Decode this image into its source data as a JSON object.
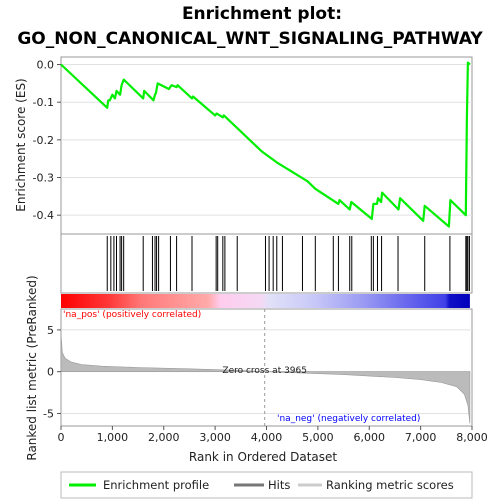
{
  "chart_data": {
    "type": "line",
    "title_line1": "Enrichment plot:",
    "title_line2": "GO_NON_CANONICAL_WNT_SIGNALING_PATHWAY",
    "colors": {
      "enrichment": "#00ee00",
      "hits": "#000000",
      "metric": "#bbbbbb",
      "pos_label": "#ff0000",
      "neg_label": "#0000ff",
      "zero_cross": "#999999"
    },
    "enrichment_panel": {
      "ylabel": "Enrichment score (ES)",
      "ylim": [
        -0.45,
        0.02
      ],
      "yticks": [
        0.0,
        -0.1,
        -0.2,
        -0.3,
        -0.4
      ],
      "ytick_labels": [
        "0.0",
        "-0.1",
        "-0.2",
        "-0.3",
        "-0.4"
      ],
      "grid": true,
      "profile": [
        [
          0,
          0.0
        ],
        [
          900,
          -0.115
        ],
        [
          920,
          -0.095
        ],
        [
          950,
          -0.095
        ],
        [
          1000,
          -0.08
        ],
        [
          1050,
          -0.09
        ],
        [
          1080,
          -0.07
        ],
        [
          1150,
          -0.08
        ],
        [
          1180,
          -0.055
        ],
        [
          1220,
          -0.04
        ],
        [
          1600,
          -0.09
        ],
        [
          1620,
          -0.07
        ],
        [
          1800,
          -0.095
        ],
        [
          1830,
          -0.08
        ],
        [
          1850,
          -0.075
        ],
        [
          1880,
          -0.05
        ],
        [
          2100,
          -0.065
        ],
        [
          2150,
          -0.055
        ],
        [
          2250,
          -0.06
        ],
        [
          2270,
          -0.055
        ],
        [
          2550,
          -0.09
        ],
        [
          2570,
          -0.085
        ],
        [
          3000,
          -0.135
        ],
        [
          3030,
          -0.13
        ],
        [
          3150,
          -0.14
        ],
        [
          3170,
          -0.135
        ],
        [
          3900,
          -0.23
        ],
        [
          4200,
          -0.26
        ],
        [
          4800,
          -0.31
        ],
        [
          4950,
          -0.33
        ],
        [
          5400,
          -0.37
        ],
        [
          5420,
          -0.36
        ],
        [
          5620,
          -0.385
        ],
        [
          5650,
          -0.365
        ],
        [
          6050,
          -0.41
        ],
        [
          6080,
          -0.37
        ],
        [
          6150,
          -0.37
        ],
        [
          6170,
          -0.355
        ],
        [
          6230,
          -0.365
        ],
        [
          6250,
          -0.34
        ],
        [
          6570,
          -0.385
        ],
        [
          6600,
          -0.355
        ],
        [
          7050,
          -0.415
        ],
        [
          7080,
          -0.375
        ],
        [
          7550,
          -0.43
        ],
        [
          7580,
          -0.36
        ],
        [
          7880,
          -0.4
        ],
        [
          7900,
          -0.14
        ],
        [
          7920,
          0.005
        ],
        [
          7960,
          0.0
        ]
      ]
    },
    "hits_panel": {
      "legend": "Hits",
      "hit_positions": [
        900,
        970,
        1030,
        1080,
        1150,
        1180,
        1220,
        1600,
        1780,
        1830,
        1860,
        1900,
        2130,
        2250,
        2550,
        3020,
        3050,
        3150,
        3190,
        3430,
        3980,
        4050,
        4130,
        4200,
        4310,
        4700,
        4950,
        5300,
        5400,
        5620,
        5660,
        6040,
        6080,
        6160,
        6240,
        6560,
        7080,
        7570,
        7880,
        7900,
        7920,
        7950
      ]
    },
    "metric_panel": {
      "ylabel": "Ranked list metric (PreRanked)",
      "ylim": [
        -6.5,
        7.5
      ],
      "yticks": [
        5,
        0,
        -5
      ],
      "ytick_labels": [
        "5",
        "0",
        "-5"
      ],
      "grid": true,
      "curve": [
        [
          0,
          4.6
        ],
        [
          25,
          2.3
        ],
        [
          80,
          1.6
        ],
        [
          200,
          1.15
        ],
        [
          400,
          0.85
        ],
        [
          800,
          0.65
        ],
        [
          1500,
          0.5
        ],
        [
          2500,
          0.35
        ],
        [
          3500,
          0.15
        ],
        [
          3965,
          0.0
        ],
        [
          4500,
          -0.12
        ],
        [
          5500,
          -0.35
        ],
        [
          6500,
          -0.7
        ],
        [
          7000,
          -0.95
        ],
        [
          7400,
          -1.3
        ],
        [
          7700,
          -1.8
        ],
        [
          7850,
          -2.7
        ],
        [
          7920,
          -4.0
        ],
        [
          7960,
          -6.2
        ]
      ],
      "pos_label": "'na_pos' (positively correlated)",
      "neg_label": "'na_neg' (negatively correlated)",
      "zero_cross_label": "Zero cross at 3965",
      "zero_cross": 3965
    },
    "xaxis": {
      "label": "Rank in Ordered Dataset",
      "xlim": [
        0,
        8000
      ],
      "data_max": 7960,
      "ticks": [
        0,
        1000,
        2000,
        3000,
        4000,
        5000,
        6000,
        7000,
        8000
      ],
      "tick_labels": [
        "0",
        "1,000",
        "2,000",
        "3,000",
        "4,000",
        "5,000",
        "6,000",
        "7,000",
        "8,000"
      ]
    },
    "legend": {
      "placement": "bottom",
      "items": [
        {
          "label": "Enrichment profile",
          "color": "#00ee00"
        },
        {
          "label": "Hits",
          "color": "#777777"
        },
        {
          "label": "Ranking metric scores",
          "color": "#cccccc"
        }
      ]
    }
  }
}
